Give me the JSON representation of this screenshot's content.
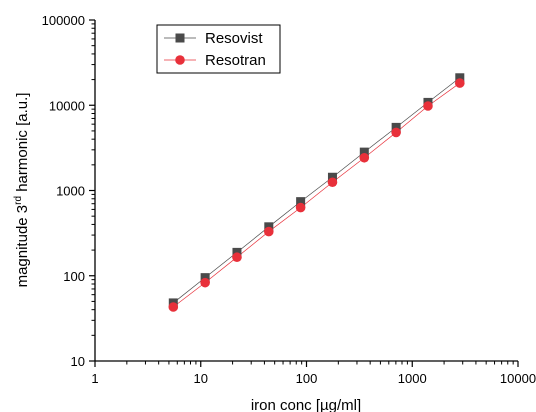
{
  "chart_data": {
    "type": "scatter",
    "xscale": "log",
    "yscale": "log",
    "xlim": [
      1,
      10000
    ],
    "ylim": [
      10,
      100000
    ],
    "x_ticks": [
      1,
      10,
      100,
      1000,
      10000
    ],
    "x_tick_labels": [
      "1",
      "10",
      "100",
      "1000",
      "10000"
    ],
    "y_ticks": [
      10,
      100,
      1000,
      10000,
      100000
    ],
    "y_tick_labels": [
      "10",
      "100",
      "1000",
      "10000",
      "100000"
    ],
    "xlabel": "iron conc [µg/ml]",
    "ylabel": {
      "pre": "magnitude 3",
      "sup": "rd",
      "post": " harmonic [a.u.]"
    },
    "grid": false,
    "legend_position": "top-left",
    "series": [
      {
        "name": "Resovist",
        "marker": "square",
        "color": "#4a4a4a",
        "x": [
          5.5,
          11,
          22,
          44,
          88,
          176,
          352,
          704,
          1408,
          2816
        ],
        "y": [
          48,
          95,
          188,
          375,
          740,
          1430,
          2820,
          5500,
          10800,
          21000
        ]
      },
      {
        "name": "Resotran",
        "marker": "circle",
        "color": "#e8303a",
        "x": [
          5.5,
          11,
          22,
          44,
          88,
          176,
          352,
          704,
          1408,
          2816
        ],
        "y": [
          43,
          83,
          165,
          330,
          630,
          1250,
          2420,
          4800,
          9800,
          18200
        ]
      }
    ]
  }
}
